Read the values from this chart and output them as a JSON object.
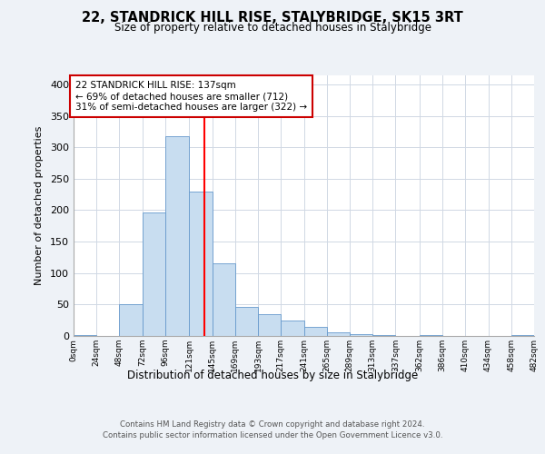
{
  "title": "22, STANDRICK HILL RISE, STALYBRIDGE, SK15 3RT",
  "subtitle": "Size of property relative to detached houses in Stalybridge",
  "xlabel": "Distribution of detached houses by size in Stalybridge",
  "ylabel": "Number of detached properties",
  "bar_color": "#c8ddf0",
  "bar_edge_color": "#6699cc",
  "vline_x": 137,
  "vline_color": "red",
  "annotation_line1": "22 STANDRICK HILL RISE: 137sqm",
  "annotation_line2": "← 69% of detached houses are smaller (712)",
  "annotation_line3": "31% of semi-detached houses are larger (322) →",
  "annotation_box_color": "#ffffff",
  "annotation_box_edge": "#cc0000",
  "footer_line1": "Contains HM Land Registry data © Crown copyright and database right 2024.",
  "footer_line2": "Contains public sector information licensed under the Open Government Licence v3.0.",
  "bin_edges": [
    0,
    24,
    48,
    72,
    96,
    121,
    145,
    169,
    193,
    217,
    241,
    265,
    289,
    313,
    337,
    362,
    386,
    410,
    434,
    458,
    482
  ],
  "bin_counts": [
    2,
    0,
    51,
    196,
    318,
    229,
    116,
    46,
    35,
    25,
    15,
    6,
    3,
    1,
    0,
    1,
    0,
    0,
    0,
    2
  ],
  "xlim": [
    0,
    482
  ],
  "ylim": [
    0,
    415
  ],
  "yticks": [
    0,
    50,
    100,
    150,
    200,
    250,
    300,
    350,
    400
  ],
  "background_color": "#eef2f7",
  "plot_background": "#ffffff",
  "tick_labels": [
    "0sqm",
    "24sqm",
    "48sqm",
    "72sqm",
    "96sqm",
    "121sqm",
    "145sqm",
    "169sqm",
    "193sqm",
    "217sqm",
    "241sqm",
    "265sqm",
    "289sqm",
    "313sqm",
    "337sqm",
    "362sqm",
    "386sqm",
    "410sqm",
    "434sqm",
    "458sqm",
    "482sqm"
  ],
  "grid_color": "#d0d8e4"
}
